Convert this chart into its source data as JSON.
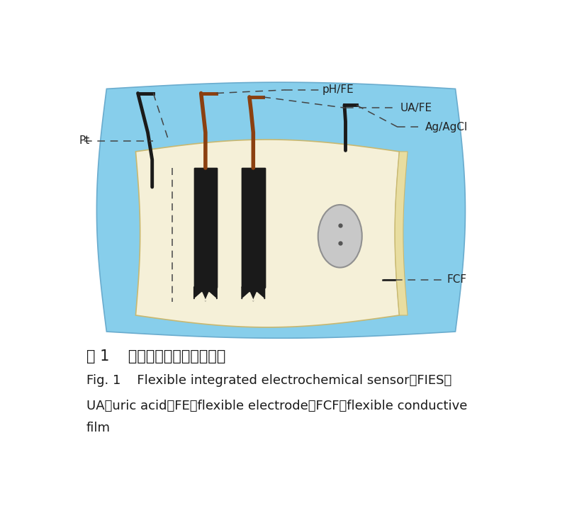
{
  "bg_color": "#ffffff",
  "blue_color": "#87CEEB",
  "blue_edge": "#6AACCE",
  "cream_color": "#F5F0D8",
  "cream_edge": "#C8B870",
  "cream_side": "#E8DDA0",
  "black_color": "#1a1a1a",
  "brown_color": "#8B4010",
  "gray_ellipse_fill": "#C8C8C8",
  "gray_ellipse_edge": "#909090",
  "dot_color": "#555555",
  "label_color": "#222222",
  "dash_color": "#444444",
  "title_cn": "图 1    柔性一体化电化学传感器",
  "title_en": "Fig. 1    Flexible integrated electrochemical sensor（FIES）",
  "subtitle_en": "UA，uric acid；FE，flexible electrode；FCF，flexible conductive",
  "subtitle_en2": "film"
}
